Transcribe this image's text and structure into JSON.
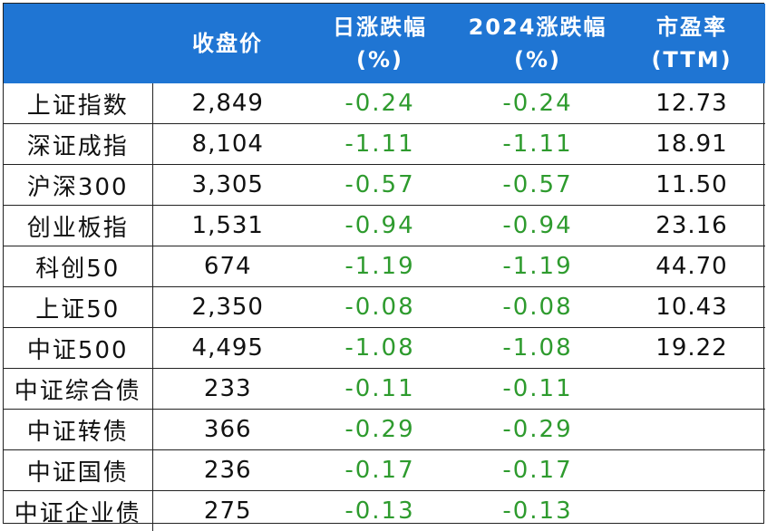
{
  "header": {
    "col0": "",
    "col1": "收盘价",
    "col2_line1": "日涨跌幅",
    "col2_line2": "(%)",
    "col3_line1": "2024涨跌幅",
    "col3_line2": "(%)",
    "col4_line1": "市盈率",
    "col4_line2": "(TTM)"
  },
  "colors": {
    "header_bg": "#1f75d3",
    "negative": "#2e9b2e",
    "text": "#111111"
  },
  "rows": [
    {
      "name": "上证指数",
      "close": "2,849",
      "daily": "-0.24",
      "ytd": "-0.24",
      "pe": "12.73"
    },
    {
      "name": "深证成指",
      "close": "8,104",
      "daily": "-1.11",
      "ytd": "-1.11",
      "pe": "18.91"
    },
    {
      "name": "沪深300",
      "close": "3,305",
      "daily": "-0.57",
      "ytd": "-0.57",
      "pe": "11.50"
    },
    {
      "name": "创业板指",
      "close": "1,531",
      "daily": "-0.94",
      "ytd": "-0.94",
      "pe": "23.16"
    },
    {
      "name": "科创50",
      "close": "674",
      "daily": "-1.19",
      "ytd": "-1.19",
      "pe": "44.70"
    },
    {
      "name": "上证50",
      "close": "2,350",
      "daily": "-0.08",
      "ytd": "-0.08",
      "pe": "10.43"
    },
    {
      "name": "中证500",
      "close": "4,495",
      "daily": "-1.08",
      "ytd": "-1.08",
      "pe": "19.22"
    },
    {
      "name": "中证综合债",
      "close": "233",
      "daily": "-0.11",
      "ytd": "-0.11",
      "pe": ""
    },
    {
      "name": "中证转债",
      "close": "366",
      "daily": "-0.29",
      "ytd": "-0.29",
      "pe": ""
    },
    {
      "name": "中证国债",
      "close": "236",
      "daily": "-0.17",
      "ytd": "-0.17",
      "pe": ""
    },
    {
      "name": "中证企业债",
      "close": "275",
      "daily": "-0.13",
      "ytd": "-0.13",
      "pe": ""
    }
  ]
}
